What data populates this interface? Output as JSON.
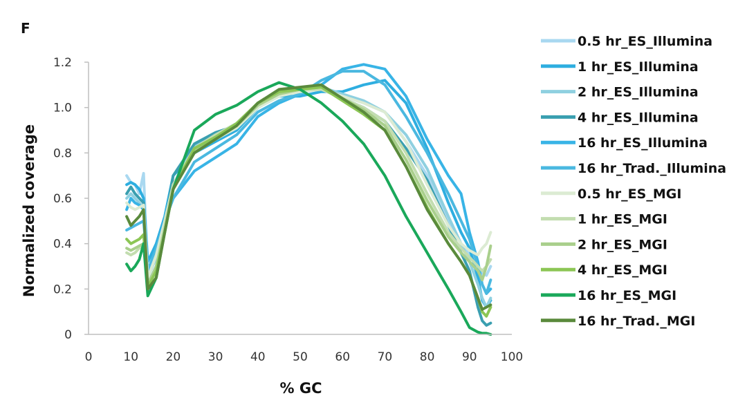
{
  "panel_label": "F",
  "chart_data": {
    "type": "line",
    "title": "",
    "xlabel": "% GC",
    "ylabel": "Normalized coverage",
    "xlim": [
      0,
      100
    ],
    "ylim": [
      0,
      1.2
    ],
    "xticks": [
      "0",
      "10",
      "20",
      "30",
      "40",
      "50",
      "60",
      "70",
      "80",
      "90",
      "100"
    ],
    "yticks": [
      "0",
      "0.2",
      "0.4",
      "0.6",
      "0.8",
      "1.0",
      "1.2"
    ],
    "legend_position": "right",
    "series": [
      {
        "name": "0.5 hr_ES_Illumina",
        "color": "#a9d8f0",
        "x": [
          9,
          10,
          11,
          12,
          13,
          14,
          16,
          18,
          20,
          25,
          30,
          35,
          40,
          45,
          50,
          55,
          60,
          65,
          70,
          75,
          80,
          85,
          88,
          90,
          92,
          93,
          94,
          95
        ],
        "y": [
          0.7,
          0.67,
          0.66,
          0.62,
          0.71,
          0.25,
          0.35,
          0.5,
          0.65,
          0.82,
          0.88,
          0.93,
          1.02,
          1.06,
          1.07,
          1.08,
          1.05,
          1.02,
          0.98,
          0.85,
          0.7,
          0.5,
          0.4,
          0.35,
          0.3,
          0.27,
          0.26,
          0.3
        ]
      },
      {
        "name": "1 hr_ES_Illumina",
        "color": "#2eaee0",
        "x": [
          9,
          10,
          11,
          12,
          13,
          14,
          16,
          18,
          20,
          25,
          30,
          35,
          40,
          45,
          50,
          55,
          60,
          65,
          70,
          75,
          80,
          85,
          88,
          90,
          92,
          93,
          94,
          95
        ],
        "y": [
          0.66,
          0.67,
          0.66,
          0.64,
          0.6,
          0.32,
          0.4,
          0.52,
          0.7,
          0.8,
          0.85,
          0.9,
          1.0,
          1.05,
          1.05,
          1.07,
          1.07,
          1.1,
          1.12,
          1.02,
          0.82,
          0.58,
          0.45,
          0.38,
          0.25,
          0.15,
          0.12,
          0.15
        ]
      },
      {
        "name": "2 hr_ES_Illumina",
        "color": "#8fd0e0",
        "x": [
          9,
          10,
          11,
          12,
          13,
          14,
          16,
          18,
          20,
          25,
          30,
          35,
          40,
          45,
          50,
          55,
          60,
          65,
          70,
          75,
          80,
          85,
          88,
          90,
          92,
          93,
          94,
          95
        ],
        "y": [
          0.6,
          0.62,
          0.6,
          0.58,
          0.56,
          0.25,
          0.34,
          0.5,
          0.66,
          0.83,
          0.88,
          0.93,
          1.02,
          1.07,
          1.08,
          1.09,
          1.06,
          1.03,
          0.98,
          0.88,
          0.73,
          0.52,
          0.4,
          0.32,
          0.22,
          0.16,
          0.12,
          0.16
        ]
      },
      {
        "name": "4 hr_ES_Illumina",
        "color": "#3a9fb0",
        "x": [
          9,
          10,
          11,
          12,
          13,
          14,
          16,
          18,
          20,
          25,
          30,
          35,
          40,
          45,
          50,
          55,
          60,
          65,
          70,
          75,
          80,
          85,
          88,
          90,
          92,
          93,
          94,
          95
        ],
        "y": [
          0.62,
          0.65,
          0.62,
          0.6,
          0.58,
          0.22,
          0.3,
          0.48,
          0.7,
          0.84,
          0.89,
          0.92,
          1.01,
          1.06,
          1.08,
          1.09,
          1.04,
          1.0,
          0.94,
          0.82,
          0.68,
          0.48,
          0.36,
          0.28,
          0.12,
          0.06,
          0.04,
          0.05
        ]
      },
      {
        "name": "16 hr_ES_Illumina",
        "color": "#38b4e6",
        "x": [
          9,
          10,
          11,
          12,
          13,
          14,
          16,
          18,
          20,
          25,
          30,
          35,
          40,
          45,
          50,
          55,
          60,
          65,
          70,
          75,
          80,
          85,
          88,
          90,
          92,
          93,
          94,
          95
        ],
        "y": [
          0.55,
          0.6,
          0.58,
          0.57,
          0.55,
          0.28,
          0.38,
          0.5,
          0.6,
          0.72,
          0.78,
          0.84,
          0.96,
          1.02,
          1.06,
          1.1,
          1.17,
          1.19,
          1.17,
          1.05,
          0.86,
          0.7,
          0.62,
          0.45,
          0.32,
          0.22,
          0.18,
          0.2
        ]
      },
      {
        "name": "16 hr_Trad._Illumina",
        "color": "#4ab8e0",
        "x": [
          9,
          10,
          11,
          12,
          13,
          14,
          16,
          18,
          20,
          25,
          30,
          35,
          40,
          45,
          50,
          55,
          60,
          65,
          70,
          75,
          80,
          85,
          88,
          90,
          92,
          93,
          94,
          95
        ],
        "y": [
          0.46,
          0.47,
          0.48,
          0.49,
          0.5,
          0.28,
          0.38,
          0.5,
          0.6,
          0.76,
          0.82,
          0.88,
          0.98,
          1.03,
          1.06,
          1.12,
          1.16,
          1.16,
          1.1,
          0.96,
          0.8,
          0.62,
          0.5,
          0.42,
          0.3,
          0.22,
          0.18,
          0.24
        ]
      },
      {
        "name": "0.5 hr_ES_MGI",
        "color": "#dcebd3",
        "x": [
          9,
          10,
          11,
          12,
          13,
          14,
          16,
          18,
          20,
          25,
          30,
          35,
          40,
          45,
          50,
          55,
          60,
          65,
          70,
          75,
          80,
          85,
          88,
          90,
          92,
          93,
          94,
          95
        ],
        "y": [
          0.58,
          0.56,
          0.55,
          0.56,
          0.57,
          0.25,
          0.35,
          0.5,
          0.66,
          0.8,
          0.86,
          0.91,
          1.0,
          1.05,
          1.07,
          1.08,
          1.05,
          1.02,
          0.98,
          0.85,
          0.66,
          0.48,
          0.4,
          0.37,
          0.35,
          0.38,
          0.4,
          0.45
        ]
      },
      {
        "name": "1 hr_ES_MGI",
        "color": "#c3ddb0",
        "x": [
          9,
          10,
          11,
          12,
          13,
          14,
          16,
          18,
          20,
          25,
          30,
          35,
          40,
          45,
          50,
          55,
          60,
          65,
          70,
          75,
          80,
          85,
          88,
          90,
          92,
          93,
          94,
          95
        ],
        "y": [
          0.36,
          0.35,
          0.36,
          0.38,
          0.4,
          0.22,
          0.3,
          0.48,
          0.66,
          0.82,
          0.88,
          0.93,
          1.02,
          1.06,
          1.08,
          1.08,
          1.04,
          1.0,
          0.94,
          0.8,
          0.62,
          0.45,
          0.38,
          0.34,
          0.3,
          0.28,
          0.3,
          0.33
        ]
      },
      {
        "name": "2 hr_ES_MGI",
        "color": "#a9cf8c",
        "x": [
          9,
          10,
          11,
          12,
          13,
          14,
          16,
          18,
          20,
          25,
          30,
          35,
          40,
          45,
          50,
          55,
          60,
          65,
          70,
          75,
          80,
          85,
          88,
          90,
          92,
          93,
          94,
          95
        ],
        "y": [
          0.38,
          0.37,
          0.38,
          0.39,
          0.4,
          0.22,
          0.3,
          0.46,
          0.64,
          0.81,
          0.87,
          0.92,
          1.01,
          1.06,
          1.08,
          1.09,
          1.04,
          0.99,
          0.92,
          0.77,
          0.59,
          0.43,
          0.36,
          0.32,
          0.28,
          0.24,
          0.3,
          0.39
        ]
      },
      {
        "name": "4 hr_ES_MGI",
        "color": "#8cc655",
        "x": [
          9,
          10,
          11,
          12,
          13,
          14,
          16,
          18,
          20,
          25,
          30,
          35,
          40,
          45,
          50,
          55,
          60,
          65,
          70,
          75,
          80,
          85,
          88,
          90,
          92,
          93,
          94,
          95
        ],
        "y": [
          0.42,
          0.4,
          0.41,
          0.42,
          0.44,
          0.21,
          0.28,
          0.45,
          0.64,
          0.82,
          0.87,
          0.93,
          1.02,
          1.07,
          1.08,
          1.09,
          1.03,
          0.97,
          0.9,
          0.74,
          0.56,
          0.4,
          0.32,
          0.26,
          0.16,
          0.1,
          0.08,
          0.12
        ]
      },
      {
        "name": "16 hr_ES_MGI",
        "color": "#1aa85a",
        "x": [
          9,
          10,
          11,
          12,
          13,
          14,
          16,
          18,
          20,
          25,
          30,
          35,
          40,
          45,
          50,
          55,
          60,
          65,
          70,
          75,
          80,
          85,
          88,
          90,
          92,
          93,
          94,
          95
        ],
        "y": [
          0.31,
          0.28,
          0.3,
          0.33,
          0.4,
          0.17,
          0.25,
          0.45,
          0.64,
          0.9,
          0.97,
          1.01,
          1.07,
          1.11,
          1.08,
          1.02,
          0.94,
          0.84,
          0.7,
          0.52,
          0.36,
          0.2,
          0.1,
          0.03,
          0.01,
          0.005,
          0.005,
          0.0
        ]
      },
      {
        "name": "16 hr_Trad._MGI",
        "color": "#5a8a3c",
        "x": [
          9,
          10,
          11,
          12,
          13,
          14,
          16,
          18,
          20,
          25,
          30,
          35,
          40,
          45,
          50,
          55,
          60,
          65,
          70,
          75,
          80,
          85,
          88,
          90,
          92,
          93,
          94,
          95
        ],
        "y": [
          0.52,
          0.48,
          0.5,
          0.52,
          0.55,
          0.2,
          0.25,
          0.45,
          0.64,
          0.8,
          0.86,
          0.92,
          1.02,
          1.08,
          1.09,
          1.1,
          1.04,
          0.98,
          0.9,
          0.74,
          0.55,
          0.4,
          0.32,
          0.26,
          0.16,
          0.11,
          0.12,
          0.13
        ]
      }
    ]
  }
}
